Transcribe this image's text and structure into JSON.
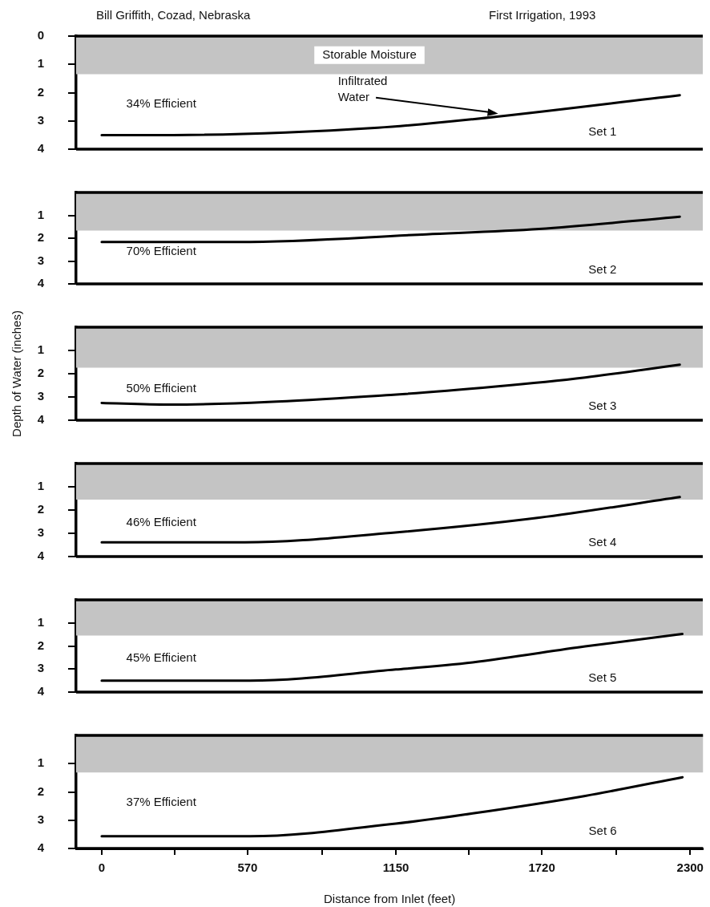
{
  "chart_data": [
    {
      "type": "line",
      "title": "Bill Griffith, Cozad, Nebraska",
      "subtitle": "First Irrigation, 1993",
      "xlim": [
        -100,
        2350
      ],
      "ylim": [
        4,
        0
      ],
      "yticks": [
        0,
        1,
        2,
        3,
        4
      ],
      "tick_labels": "y",
      "marker": "none",
      "series": [
        {
          "color": "#000000",
          "x": [
            0,
            280,
            1080,
            1450,
            2260
          ],
          "values": [
            3.5,
            3.5,
            3.24,
            2.94,
            2.09
          ]
        }
      ],
      "bands": [
        {
          "axis": "y",
          "from": 0,
          "to": 1.35,
          "label": "Storable Moisture",
          "color": "#c4c4c4"
        }
      ],
      "annotations": [
        "34% Efficient",
        "Set 1",
        {
          "text": "Infiltrated Water",
          "x": 1550,
          "y": 2.8
        }
      ]
    },
    {
      "type": "line",
      "xlim": [
        -100,
        2350
      ],
      "ylim": [
        4,
        0
      ],
      "yticks": [
        1,
        2,
        3,
        4
      ],
      "tick_labels": "y",
      "marker": "none",
      "series": [
        {
          "color": "#000000",
          "x": [
            0,
            535,
            1270,
            1710,
            2260
          ],
          "values": [
            2.17,
            2.17,
            1.83,
            1.6,
            1.06
          ]
        }
      ],
      "bands": [
        {
          "axis": "y",
          "from": 0,
          "to": 1.67,
          "color": "#c4c4c4"
        }
      ],
      "annotations": [
        "70% Efficient",
        "Set 2"
      ]
    },
    {
      "type": "line",
      "ylabel": "Depth of Water (inches)",
      "xlim": [
        -100,
        2350
      ],
      "ylim": [
        4,
        0
      ],
      "yticks": [
        1,
        2,
        3,
        4
      ],
      "tick_labels": "y",
      "marker": "none",
      "series": [
        {
          "color": "#000000",
          "x": [
            0,
            260,
            1130,
            1540,
            1890,
            2260
          ],
          "values": [
            3.26,
            3.33,
            2.91,
            2.55,
            2.16,
            1.61
          ]
        }
      ],
      "bands": [
        {
          "axis": "y",
          "from": 0,
          "to": 1.74,
          "color": "#c4c4c4"
        }
      ],
      "annotations": [
        "50% Efficient",
        "Set 3"
      ]
    },
    {
      "type": "line",
      "xlim": [
        -100,
        2350
      ],
      "ylim": [
        4,
        0
      ],
      "yticks": [
        1,
        2,
        3,
        4
      ],
      "tick_labels": "y",
      "marker": "none",
      "series": [
        {
          "color": "#000000",
          "x": [
            0,
            560,
            1130,
            1710,
            2260
          ],
          "values": [
            3.39,
            3.39,
            2.98,
            2.33,
            1.44
          ]
        }
      ],
      "bands": [
        {
          "axis": "y",
          "from": 0,
          "to": 1.55,
          "color": "#c4c4c4"
        }
      ],
      "annotations": [
        "46% Efficient",
        "Set 4"
      ]
    },
    {
      "type": "line",
      "xlim": [
        -100,
        2350
      ],
      "ylim": [
        4,
        0
      ],
      "yticks": [
        1,
        2,
        3,
        4
      ],
      "tick_labels": "y",
      "marker": "none",
      "series": [
        {
          "color": "#000000",
          "x": [
            0,
            580,
            1150,
            1450,
            1890,
            2270
          ],
          "values": [
            3.5,
            3.5,
            3.02,
            2.71,
            2.02,
            1.48
          ]
        }
      ],
      "bands": [
        {
          "axis": "y",
          "from": 0,
          "to": 1.55,
          "color": "#c4c4c4"
        }
      ],
      "annotations": [
        "45% Efficient",
        "Set 5"
      ]
    },
    {
      "type": "line",
      "xlabel": "Distance from Inlet (feet)",
      "xlim": [
        -100,
        2350
      ],
      "ylim": [
        4,
        0
      ],
      "yticks": [
        1,
        2,
        3,
        4
      ],
      "marker": "none",
      "xticks": [
        0,
        {
          "value": 285,
          "label": null
        },
        570,
        {
          "value": 860,
          "label": null
        },
        1150,
        {
          "value": 1435,
          "label": null
        },
        1720,
        {
          "value": 2010,
          "label": null
        },
        2300
      ],
      "series": [
        {
          "color": "#000000",
          "x": [
            0,
            580,
            1150,
            1450,
            1890,
            2270
          ],
          "values": [
            3.57,
            3.57,
            3.12,
            2.76,
            2.14,
            1.48
          ]
        }
      ],
      "bands": [
        {
          "axis": "y",
          "from": 0,
          "to": 1.31,
          "color": "#c4c4c4"
        }
      ],
      "annotations": [
        "37% Efficient",
        "Set 6"
      ]
    }
  ]
}
